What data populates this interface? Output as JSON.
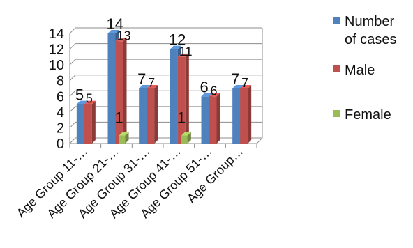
{
  "chart_data": {
    "type": "bar",
    "title": "",
    "xlabel": "",
    "ylabel": "",
    "ylim": [
      0,
      14
    ],
    "yticks": [
      0,
      2,
      4,
      6,
      8,
      10,
      12,
      14
    ],
    "grid": true,
    "three_d": true,
    "legend_position": "right",
    "categories": [
      "Age Group 11-…",
      "Age Group 21-…",
      "Age Group 31-…",
      "Age Group 41-…",
      "Age Group 51-…",
      "Age Group…"
    ],
    "series": [
      {
        "name": "Number of cases",
        "color": "#4f81bd",
        "values": [
          5,
          14,
          7,
          12,
          6,
          7
        ]
      },
      {
        "name": "Male",
        "color": "#c0504d",
        "values": [
          5,
          13,
          7,
          11,
          6,
          7
        ]
      },
      {
        "name": "Female",
        "color": "#9bbb59",
        "values": [
          null,
          1,
          null,
          1,
          null,
          null
        ]
      }
    ]
  }
}
